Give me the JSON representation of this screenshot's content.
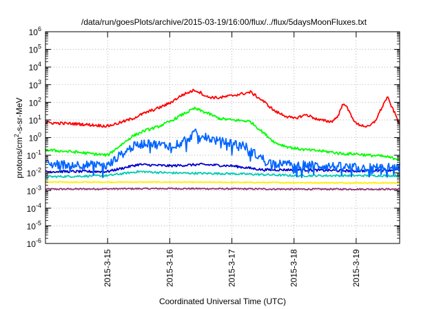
{
  "chart_data": {
    "type": "line",
    "title": "/data/run/goesPlots/archive/2015-03-19/16:00/flux/../flux/5daysMoonFluxes.txt",
    "xlabel": "Coordinated Universal Time (UTC)",
    "ylabel_parts": {
      "base": "protons/cm",
      "sup": "2",
      "rest": "-s-sr-MeV"
    },
    "xlim": [
      0,
      5.7
    ],
    "ylim_exponents": [
      -6,
      6
    ],
    "log_y": true,
    "grid": true,
    "x_ticks": [
      {
        "value": 1,
        "label": "2015-3-15"
      },
      {
        "value": 2,
        "label": "2015-3-16"
      },
      {
        "value": 3,
        "label": "2015-3-17"
      },
      {
        "value": 4,
        "label": "2015-3-18"
      },
      {
        "value": 5,
        "label": "2015-3-19"
      }
    ],
    "y_ticks": [
      {
        "exp": -6,
        "base": "10",
        "sup": "-6"
      },
      {
        "exp": -5,
        "base": "10",
        "sup": "-5"
      },
      {
        "exp": -4,
        "base": "10",
        "sup": "-4"
      },
      {
        "exp": -3,
        "base": "10",
        "sup": "-3"
      },
      {
        "exp": -2,
        "base": "10",
        "sup": "-2"
      },
      {
        "exp": -1,
        "base": "10",
        "sup": "-1"
      },
      {
        "exp": 0,
        "base": "10",
        "sup": "0"
      },
      {
        "exp": 1,
        "base": "10",
        "sup": "1"
      },
      {
        "exp": 2,
        "base": "10",
        "sup": "2"
      },
      {
        "exp": 3,
        "base": "10",
        "sup": "3"
      },
      {
        "exp": 4,
        "base": "10",
        "sup": "4"
      },
      {
        "exp": 5,
        "base": "10",
        "sup": "5"
      },
      {
        "exp": 6,
        "base": "10",
        "sup": "6"
      }
    ],
    "series": [
      {
        "color": "#ff0000",
        "noise": 0.08,
        "x": [
          0,
          0.5,
          1.0,
          1.2,
          1.4,
          1.6,
          1.8,
          2.0,
          2.2,
          2.4,
          2.5,
          2.6,
          2.8,
          3.0,
          3.2,
          3.3,
          3.5,
          3.7,
          3.9,
          4.0,
          4.2,
          4.4,
          4.6,
          4.7,
          4.8,
          5.0,
          5.2,
          5.3,
          5.5,
          5.7
        ],
        "y": [
          7,
          6,
          4.5,
          7,
          12,
          25,
          45,
          90,
          260,
          500,
          350,
          200,
          180,
          240,
          320,
          380,
          120,
          30,
          15,
          12,
          20,
          10,
          8,
          15,
          100,
          6,
          4,
          8,
          200,
          6
        ]
      },
      {
        "color": "#00ff00",
        "noise": 0.08,
        "x": [
          0,
          0.5,
          1.0,
          1.2,
          1.4,
          1.6,
          1.8,
          2.0,
          2.2,
          2.4,
          2.6,
          2.8,
          3.0,
          3.2,
          3.3,
          3.5,
          3.7,
          3.9,
          4.0,
          4.2,
          4.4,
          4.6,
          4.8,
          5.0,
          5.2,
          5.4,
          5.7
        ],
        "y": [
          0.2,
          0.15,
          0.1,
          0.35,
          1.2,
          2.5,
          4,
          8,
          20,
          45,
          25,
          12,
          10,
          9,
          8,
          2,
          0.5,
          0.3,
          0.25,
          0.2,
          0.18,
          0.15,
          0.12,
          0.12,
          0.1,
          0.09,
          0.06
        ]
      },
      {
        "color": "#0064ff",
        "noise": 0.25,
        "x": [
          0,
          0.5,
          1.0,
          1.2,
          1.4,
          1.6,
          1.8,
          2.0,
          2.2,
          2.4,
          2.6,
          2.8,
          3.0,
          3.2,
          3.4,
          3.6,
          3.8,
          4.0,
          4.5,
          5.0,
          5.7
        ],
        "y": [
          0.03,
          0.03,
          0.025,
          0.1,
          0.3,
          0.5,
          0.4,
          0.35,
          0.6,
          1.8,
          1.0,
          0.6,
          0.5,
          0.35,
          0.1,
          0.04,
          0.03,
          0.03,
          0.025,
          0.02,
          0.02
        ]
      },
      {
        "color": "#0000cc",
        "noise": 0.07,
        "x": [
          0,
          1.0,
          1.5,
          2.0,
          2.5,
          3.0,
          3.5,
          4.0,
          5.0,
          5.7
        ],
        "y": [
          0.012,
          0.012,
          0.03,
          0.025,
          0.03,
          0.025,
          0.015,
          0.015,
          0.013,
          0.015
        ]
      },
      {
        "color": "#00ccb4",
        "noise": 0.06,
        "x": [
          0,
          1.0,
          1.5,
          2.0,
          3.0,
          3.5,
          4.0,
          5.0,
          5.7
        ],
        "y": [
          0.006,
          0.007,
          0.012,
          0.01,
          0.009,
          0.008,
          0.007,
          0.007,
          0.007
        ]
      },
      {
        "color": "#ffee00",
        "noise": 0.03,
        "x": [
          0,
          2.0,
          4.0,
          5.7
        ],
        "y": [
          0.003,
          0.003,
          0.0028,
          0.0027
        ]
      },
      {
        "color": "#8b2e6e",
        "noise": 0.04,
        "x": [
          0,
          2.0,
          4.0,
          5.7
        ],
        "y": [
          0.0012,
          0.0013,
          0.0012,
          0.0012
        ]
      }
    ]
  }
}
